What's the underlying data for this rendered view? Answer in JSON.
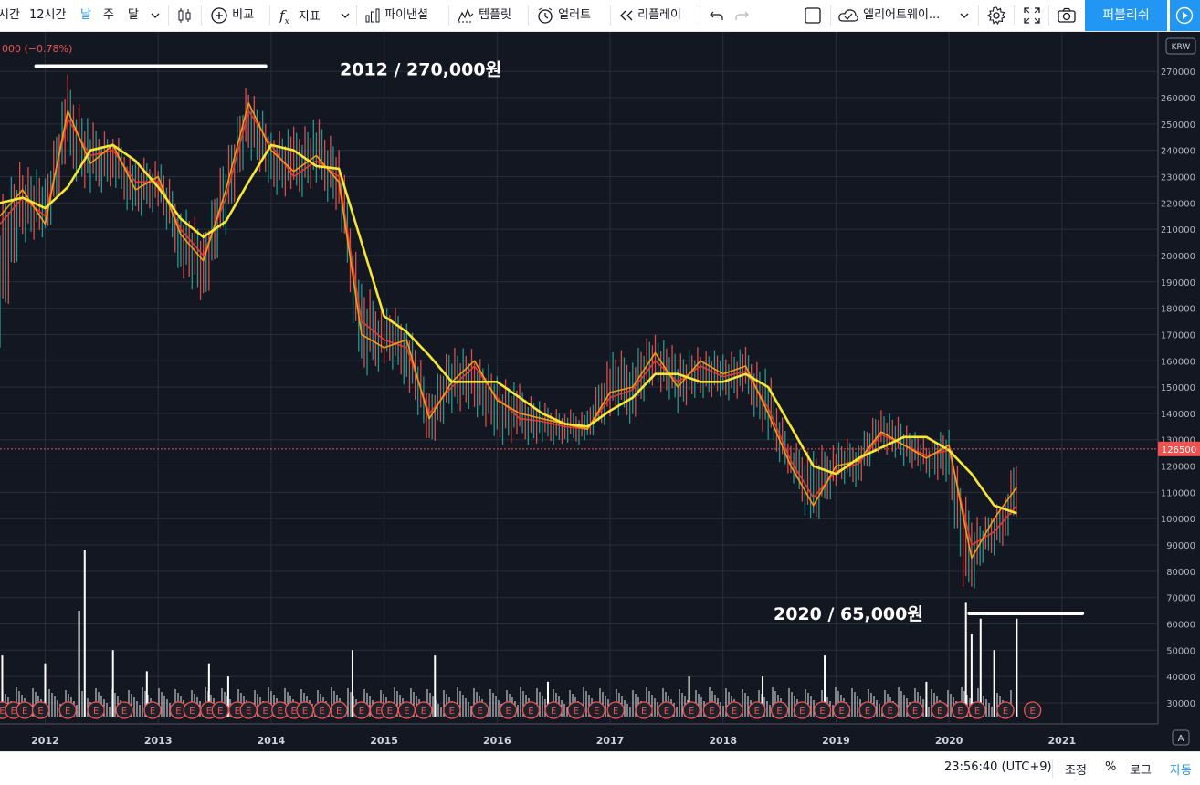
{
  "toolbar": {
    "interval_partial": "시간",
    "interval_12h": "12시간",
    "interval_day": "날",
    "interval_week": "주",
    "interval_month": "달",
    "compare": "비교",
    "indicators": "지표",
    "financials": "파이낸셜",
    "templates": "템플릿",
    "alert": "얼러트",
    "replay": "리플레이",
    "layout_name": "엘리어트웨이...",
    "publish": "퍼블리쉬"
  },
  "legend": {
    "change": "000 (−0.78%)"
  },
  "price_axis": {
    "currency": "KRW",
    "current_price": "126500",
    "scale_mode": "A"
  },
  "annotations": [
    {
      "text": "2012 / 270,000원",
      "price": 272000
    },
    {
      "text": "2020 / 65,000원",
      "price": 64000
    }
  ],
  "statusbar": {
    "time": "23:56:40 (UTC+9)",
    "adjust": "조정",
    "percent": "%",
    "log": "로그",
    "auto": "자동"
  },
  "chart_data": {
    "type": "line",
    "y_ticks": [
      270000,
      260000,
      250000,
      240000,
      230000,
      220000,
      210000,
      200000,
      190000,
      180000,
      170000,
      160000,
      150000,
      140000,
      130000,
      120000,
      110000,
      100000,
      90000,
      80000,
      70000,
      60000,
      50000,
      40000,
      30000
    ],
    "x_ticks": [
      "2012",
      "2013",
      "2014",
      "2015",
      "2016",
      "2017",
      "2018",
      "2019",
      "2020",
      "2021"
    ],
    "ylim": [
      22000,
      285000
    ],
    "xlim": [
      2011.6,
      2021.85
    ],
    "grid": true,
    "current_price": 126500,
    "earnings_marker": "E",
    "earnings_dates": [
      2011.62,
      2011.72,
      2011.82,
      2011.96,
      2012.2,
      2012.45,
      2012.7,
      2012.95,
      2013.18,
      2013.3,
      2013.45,
      2013.55,
      2013.7,
      2013.8,
      2013.95,
      2014.08,
      2014.2,
      2014.3,
      2014.45,
      2014.6,
      2014.8,
      2014.95,
      2015.05,
      2015.2,
      2015.35,
      2015.6,
      2015.85,
      2016.1,
      2016.3,
      2016.5,
      2016.7,
      2016.88,
      2017.05,
      2017.3,
      2017.5,
      2017.72,
      2017.9,
      2018.1,
      2018.3,
      2018.5,
      2018.7,
      2018.88,
      2019.05,
      2019.28,
      2019.48,
      2019.7,
      2019.92,
      2020.1,
      2020.25,
      2020.5,
      2020.74
    ],
    "series": [
      {
        "color": "#f7e733",
        "x": [
          2011.6,
          2011.8,
          2012.0,
          2012.2,
          2012.4,
          2012.6,
          2012.8,
          2013.0,
          2013.2,
          2013.4,
          2013.6,
          2013.8,
          2014.0,
          2014.2,
          2014.4,
          2014.6,
          2014.8,
          2015.0,
          2015.2,
          2015.4,
          2015.6,
          2015.8,
          2016.0,
          2016.2,
          2016.4,
          2016.6,
          2016.8,
          2017.0,
          2017.2,
          2017.4,
          2017.6,
          2017.8,
          2018.0,
          2018.2,
          2018.4,
          2018.6,
          2018.8,
          2019.0,
          2019.2,
          2019.4,
          2019.6,
          2019.8,
          2020.0,
          2020.2,
          2020.4,
          2020.6
        ],
        "y": [
          220000,
          222000,
          218000,
          226000,
          240000,
          242000,
          236000,
          226000,
          214000,
          207000,
          213000,
          228000,
          242000,
          240000,
          234000,
          233000,
          205000,
          177000,
          171000,
          162000,
          152000,
          152000,
          152000,
          146000,
          140000,
          136000,
          135000,
          141000,
          146000,
          155000,
          155000,
          152000,
          152000,
          155000,
          150000,
          135000,
          120000,
          117000,
          123000,
          127000,
          131000,
          131000,
          126000,
          117000,
          105000,
          102000
        ]
      },
      {
        "color": "#f39c12",
        "x": [
          2011.6,
          2011.8,
          2012.0,
          2012.2,
          2012.4,
          2012.6,
          2012.8,
          2013.0,
          2013.2,
          2013.4,
          2013.6,
          2013.8,
          2014.0,
          2014.2,
          2014.4,
          2014.6,
          2014.8,
          2015.0,
          2015.2,
          2015.4,
          2015.6,
          2015.8,
          2016.0,
          2016.2,
          2016.4,
          2016.6,
          2016.8,
          2017.0,
          2017.2,
          2017.4,
          2017.6,
          2017.8,
          2018.0,
          2018.2,
          2018.4,
          2018.6,
          2018.8,
          2019.0,
          2019.2,
          2019.4,
          2019.6,
          2019.8,
          2020.0,
          2020.2,
          2020.4,
          2020.6
        ],
        "y": [
          215000,
          225000,
          212000,
          255000,
          235000,
          242000,
          225000,
          230000,
          208000,
          198000,
          225000,
          258000,
          240000,
          232000,
          238000,
          228000,
          170000,
          165000,
          168000,
          138000,
          152000,
          160000,
          145000,
          140000,
          138000,
          136000,
          134000,
          148000,
          150000,
          163000,
          150000,
          160000,
          155000,
          158000,
          140000,
          120000,
          105000,
          120000,
          122000,
          133000,
          128000,
          123000,
          128000,
          85000,
          100000,
          112000
        ]
      },
      {
        "color": "#e53935",
        "x": [
          2011.6,
          2011.8,
          2012.0,
          2012.2,
          2012.4,
          2012.6,
          2012.8,
          2013.0,
          2013.2,
          2013.4,
          2013.6,
          2013.8,
          2014.0,
          2014.2,
          2014.4,
          2014.6,
          2014.8,
          2015.0,
          2015.2,
          2015.4,
          2015.6,
          2015.8,
          2016.0,
          2016.2,
          2016.4,
          2016.6,
          2016.8,
          2017.0,
          2017.2,
          2017.4,
          2017.6,
          2017.8,
          2018.0,
          2018.2,
          2018.4,
          2018.6,
          2018.8,
          2019.0,
          2019.2,
          2019.4,
          2019.6,
          2019.8,
          2020.0,
          2020.2,
          2020.4,
          2020.6
        ],
        "y": [
          212000,
          222000,
          215000,
          252000,
          238000,
          240000,
          228000,
          228000,
          210000,
          200000,
          222000,
          255000,
          242000,
          230000,
          236000,
          230000,
          175000,
          168000,
          165000,
          140000,
          150000,
          158000,
          146000,
          138000,
          137000,
          135000,
          134000,
          146000,
          149000,
          160000,
          152000,
          158000,
          154000,
          156000,
          142000,
          122000,
          108000,
          118000,
          121000,
          132000,
          128000,
          124000,
          126000,
          90000,
          95000,
          105000
        ]
      }
    ],
    "price_range": [
      [
        2011.6,
        228000,
        165000
      ],
      [
        2011.8,
        238000,
        205000
      ],
      [
        2012.0,
        233000,
        205000
      ],
      [
        2012.2,
        270000,
        232000
      ],
      [
        2012.4,
        252000,
        222000
      ],
      [
        2012.6,
        248000,
        226000
      ],
      [
        2012.8,
        238000,
        212000
      ],
      [
        2013.0,
        238000,
        218000
      ],
      [
        2013.2,
        222000,
        192000
      ],
      [
        2013.4,
        212000,
        178000
      ],
      [
        2013.6,
        242000,
        208000
      ],
      [
        2013.8,
        268000,
        238000
      ],
      [
        2014.0,
        250000,
        224000
      ],
      [
        2014.2,
        250000,
        220000
      ],
      [
        2014.4,
        254000,
        226000
      ],
      [
        2014.6,
        245000,
        215000
      ],
      [
        2014.8,
        192000,
        150000
      ],
      [
        2015.0,
        182000,
        158000
      ],
      [
        2015.2,
        180000,
        150000
      ],
      [
        2015.4,
        150000,
        125000
      ],
      [
        2015.6,
        168000,
        140000
      ],
      [
        2015.8,
        165000,
        140000
      ],
      [
        2016.0,
        158000,
        128000
      ],
      [
        2016.2,
        152000,
        128000
      ],
      [
        2016.4,
        145000,
        128000
      ],
      [
        2016.6,
        142000,
        128000
      ],
      [
        2016.8,
        142000,
        128000
      ],
      [
        2017.0,
        165000,
        138000
      ],
      [
        2017.2,
        165000,
        136000
      ],
      [
        2017.4,
        172000,
        150000
      ],
      [
        2017.6,
        165000,
        140000
      ],
      [
        2017.8,
        166000,
        146000
      ],
      [
        2018.0,
        165000,
        145000
      ],
      [
        2018.2,
        166000,
        145000
      ],
      [
        2018.4,
        158000,
        128000
      ],
      [
        2018.6,
        130000,
        115000
      ],
      [
        2018.8,
        128000,
        93000
      ],
      [
        2019.0,
        130000,
        112000
      ],
      [
        2019.2,
        132000,
        112000
      ],
      [
        2019.4,
        143000,
        125000
      ],
      [
        2019.6,
        138000,
        120000
      ],
      [
        2019.8,
        130000,
        116000
      ],
      [
        2020.0,
        137000,
        112000
      ],
      [
        2020.15,
        110000,
        65000
      ],
      [
        2020.3,
        100000,
        82000
      ],
      [
        2020.5,
        112000,
        90000
      ],
      [
        2020.62,
        130000,
        100000
      ]
    ],
    "volume_spikes": [
      [
        2011.62,
        48000
      ],
      [
        2012.0,
        45000
      ],
      [
        2012.3,
        65000
      ],
      [
        2012.35,
        88000
      ],
      [
        2012.6,
        50000
      ],
      [
        2012.9,
        42000
      ],
      [
        2013.45,
        45000
      ],
      [
        2013.62,
        40000
      ],
      [
        2014.72,
        50000
      ],
      [
        2015.45,
        48000
      ],
      [
        2016.45,
        38000
      ],
      [
        2017.7,
        40000
      ],
      [
        2018.35,
        40000
      ],
      [
        2018.9,
        48000
      ],
      [
        2019.8,
        38000
      ],
      [
        2020.15,
        68000
      ],
      [
        2020.2,
        56000
      ],
      [
        2020.28,
        62000
      ],
      [
        2020.4,
        50000
      ],
      [
        2020.6,
        62000
      ]
    ]
  }
}
